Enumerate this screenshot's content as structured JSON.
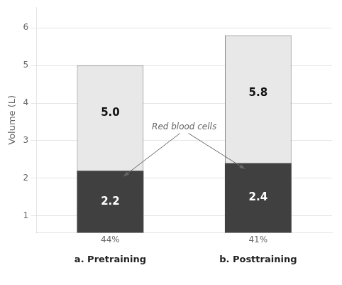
{
  "chart_data": {
    "type": "bar",
    "categories": [
      "a. Pretraining",
      "b. Posttraining"
    ],
    "series": [
      {
        "color": "#404040",
        "values": [
          2.2,
          2.4
        ],
        "value_labels": [
          "2.2",
          "2.4"
        ]
      },
      {
        "color": "#e8e8e8",
        "values": [
          5.0,
          5.8
        ],
        "value_labels": [
          "5.0",
          "5.8"
        ]
      }
    ],
    "ylabel": "Volume (L)",
    "ylim": [
      0.55,
      6.55
    ],
    "yticks": [
      1,
      2,
      3,
      4,
      5,
      6
    ],
    "grid": true,
    "data_labels": true,
    "annotations": [
      {
        "text": "Red blood cells"
      },
      {
        "text": "44%",
        "category": "a. Pretraining"
      },
      {
        "text": "41%",
        "category": "b. Posttraining"
      }
    ]
  }
}
